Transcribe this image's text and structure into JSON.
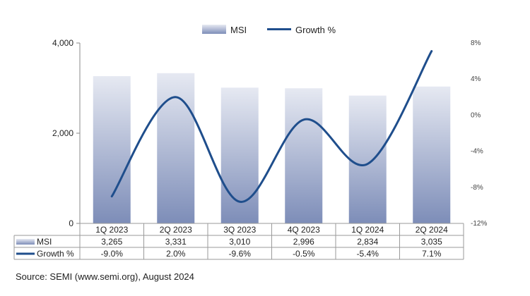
{
  "chart_data": {
    "type": "bar+line",
    "categories": [
      "1Q 2023",
      "2Q 2023",
      "3Q 2023",
      "4Q 2023",
      "1Q 2024",
      "2Q 2024"
    ],
    "series": [
      {
        "name": "MSI",
        "type": "bar",
        "axis": "left",
        "values": [
          3265,
          3331,
          3010,
          2996,
          2834,
          3035
        ],
        "labels": [
          "3,265",
          "3,331",
          "3,010",
          "2,996",
          "2,834",
          "3,035"
        ]
      },
      {
        "name": "Growth %",
        "type": "line",
        "axis": "right",
        "values": [
          -9.0,
          2.0,
          -9.6,
          -0.5,
          -5.4,
          7.1
        ],
        "labels": [
          "-9.0%",
          "2.0%",
          "-9.6%",
          "-0.5%",
          "-5.4%",
          "7.1%"
        ]
      }
    ],
    "left_axis": {
      "ylim": [
        0,
        4000
      ],
      "ticks": [
        0,
        2000,
        4000
      ],
      "tick_labels": [
        "0",
        "2,000",
        "4,000"
      ]
    },
    "right_axis": {
      "ylim": [
        -12,
        8
      ],
      "ticks": [
        -12,
        -8,
        -4,
        0,
        4,
        8
      ],
      "tick_labels": [
        "-12%",
        "-8%",
        "-4%",
        "0%",
        "4%",
        "8%"
      ]
    },
    "legend": {
      "position": "top-center"
    },
    "grid": false,
    "colors": {
      "bar_top": "#e6e9f2",
      "bar_bottom": "#7d8db8",
      "line": "#1f4e8c",
      "table_border": "#9a9a9a"
    }
  },
  "source": "Source: SEMI (www.semi.org), August 2024"
}
